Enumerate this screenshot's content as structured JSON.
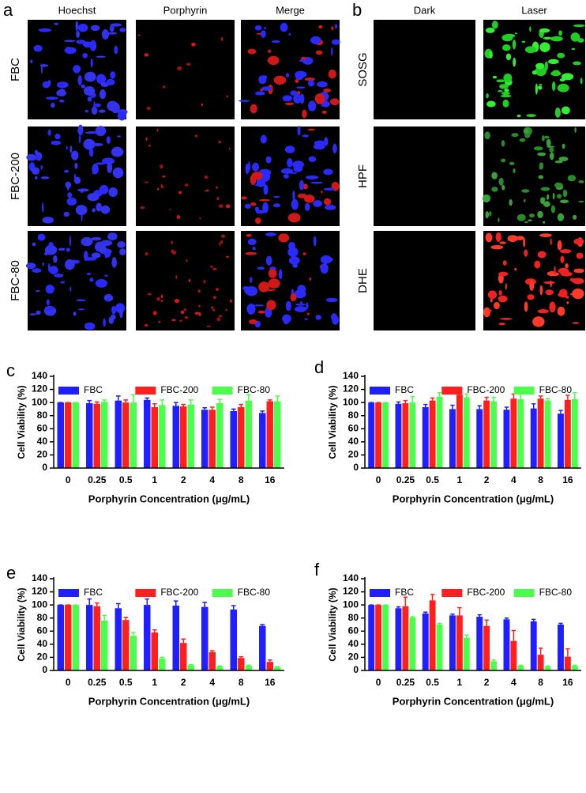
{
  "panel_a": {
    "label": "a",
    "columns": [
      "Hoechst",
      "Porphyrin",
      "Merge"
    ],
    "rows": [
      "FBC",
      "FBC-200",
      "FBC-80"
    ]
  },
  "panel_b": {
    "label": "b",
    "columns": [
      "Dark",
      "Laser"
    ],
    "rows": [
      "SOSG",
      "HPF",
      "DHE"
    ]
  },
  "chart_data": [
    {
      "type": "bar",
      "panel_label": "c",
      "y_label": "Cell Viability (%)",
      "x_label": "Porphyrin Concentration (μg/mL)",
      "categories": [
        "0",
        "0.25",
        "0.5",
        "1",
        "2",
        "4",
        "8",
        "16"
      ],
      "ylim": [
        0,
        140
      ],
      "yticks": [
        0,
        20,
        40,
        60,
        80,
        100,
        120,
        140
      ],
      "series": [
        {
          "name": "FBC",
          "color": "#1f1fff",
          "values": [
            100,
            99,
            103,
            104,
            95,
            89,
            87,
            84
          ],
          "errors": [
            0,
            4,
            7,
            3,
            5,
            3,
            3,
            3
          ]
        },
        {
          "name": "FBC-200",
          "color": "#ff1f1f",
          "values": [
            100,
            98,
            100,
            93,
            94,
            89,
            93,
            102
          ],
          "errors": [
            0,
            3,
            4,
            5,
            3,
            4,
            4,
            2
          ]
        },
        {
          "name": "FBC-80",
          "color": "#4dff4d",
          "values": [
            100,
            101,
            100,
            96,
            97,
            99,
            103,
            102
          ],
          "errors": [
            0,
            3,
            12,
            8,
            7,
            6,
            9,
            8
          ]
        }
      ]
    },
    {
      "type": "bar",
      "panel_label": "d",
      "y_label": "Cell Viability (%)",
      "x_label": "Porphyrin Concentration (μg/mL)",
      "categories": [
        "0",
        "0.25",
        "0.5",
        "1",
        "2",
        "4",
        "8",
        "16"
      ],
      "ylim": [
        0,
        140
      ],
      "yticks": [
        0,
        20,
        40,
        60,
        80,
        100,
        120,
        140
      ],
      "series": [
        {
          "name": "FBC",
          "color": "#1f1fff",
          "values": [
            100,
            98,
            93,
            90,
            90,
            89,
            91,
            83
          ],
          "errors": [
            0,
            3,
            4,
            6,
            5,
            4,
            7,
            5
          ]
        },
        {
          "name": "FBC-200",
          "color": "#ff1f1f",
          "values": [
            100,
            99,
            103,
            112,
            103,
            106,
            106,
            104
          ],
          "errors": [
            0,
            4,
            4,
            3,
            5,
            7,
            4,
            7
          ]
        },
        {
          "name": "FBC-80",
          "color": "#4dff4d",
          "values": [
            100,
            100,
            109,
            108,
            102,
            105,
            103,
            105
          ],
          "errors": [
            0,
            9,
            6,
            5,
            6,
            12,
            3,
            10
          ]
        }
      ]
    },
    {
      "type": "bar",
      "panel_label": "e",
      "y_label": "Cell Viability (%)",
      "x_label": "Porphyrin Concentration (μg/mL)",
      "categories": [
        "0",
        "0.25",
        "0.5",
        "1",
        "2",
        "4",
        "8",
        "16"
      ],
      "ylim": [
        0,
        140
      ],
      "yticks": [
        0,
        20,
        40,
        60,
        80,
        100,
        120,
        140
      ],
      "series": [
        {
          "name": "FBC",
          "color": "#1f1fff",
          "values": [
            100,
            100,
            95,
            100,
            99,
            97,
            93,
            68
          ],
          "errors": [
            0,
            9,
            7,
            9,
            7,
            7,
            6,
            2
          ]
        },
        {
          "name": "FBC-200",
          "color": "#ff1f1f",
          "values": [
            100,
            98,
            77,
            58,
            42,
            28,
            19,
            13
          ],
          "errors": [
            0,
            5,
            4,
            4,
            6,
            2,
            2,
            3
          ]
        },
        {
          "name": "FBC-80",
          "color": "#4dff4d",
          "values": [
            100,
            76,
            53,
            18,
            8,
            6,
            7,
            5
          ],
          "errors": [
            0,
            8,
            5,
            2,
            1,
            1,
            1,
            1
          ]
        }
      ]
    },
    {
      "type": "bar",
      "panel_label": "f",
      "y_label": "Cell Viability (%)",
      "x_label": "Porphyrin Concentration (μg/mL)",
      "categories": [
        "0",
        "0.25",
        "0.5",
        "1",
        "2",
        "4",
        "8",
        "16"
      ],
      "ylim": [
        0,
        140
      ],
      "yticks": [
        0,
        20,
        40,
        60,
        80,
        100,
        120,
        140
      ],
      "series": [
        {
          "name": "FBC",
          "color": "#1f1fff",
          "values": [
            100,
            95,
            87,
            84,
            82,
            78,
            75,
            70
          ],
          "errors": [
            0,
            2,
            2,
            2,
            3,
            2,
            3,
            2
          ]
        },
        {
          "name": "FBC-200",
          "color": "#ff1f1f",
          "values": [
            100,
            98,
            107,
            84,
            68,
            45,
            24,
            21
          ],
          "errors": [
            0,
            14,
            9,
            12,
            9,
            16,
            10,
            12
          ]
        },
        {
          "name": "FBC-80",
          "color": "#4dff4d",
          "values": [
            100,
            81,
            70,
            50,
            14,
            7,
            6,
            7
          ],
          "errors": [
            0,
            1,
            2,
            4,
            2,
            1,
            1,
            1
          ]
        }
      ]
    }
  ]
}
